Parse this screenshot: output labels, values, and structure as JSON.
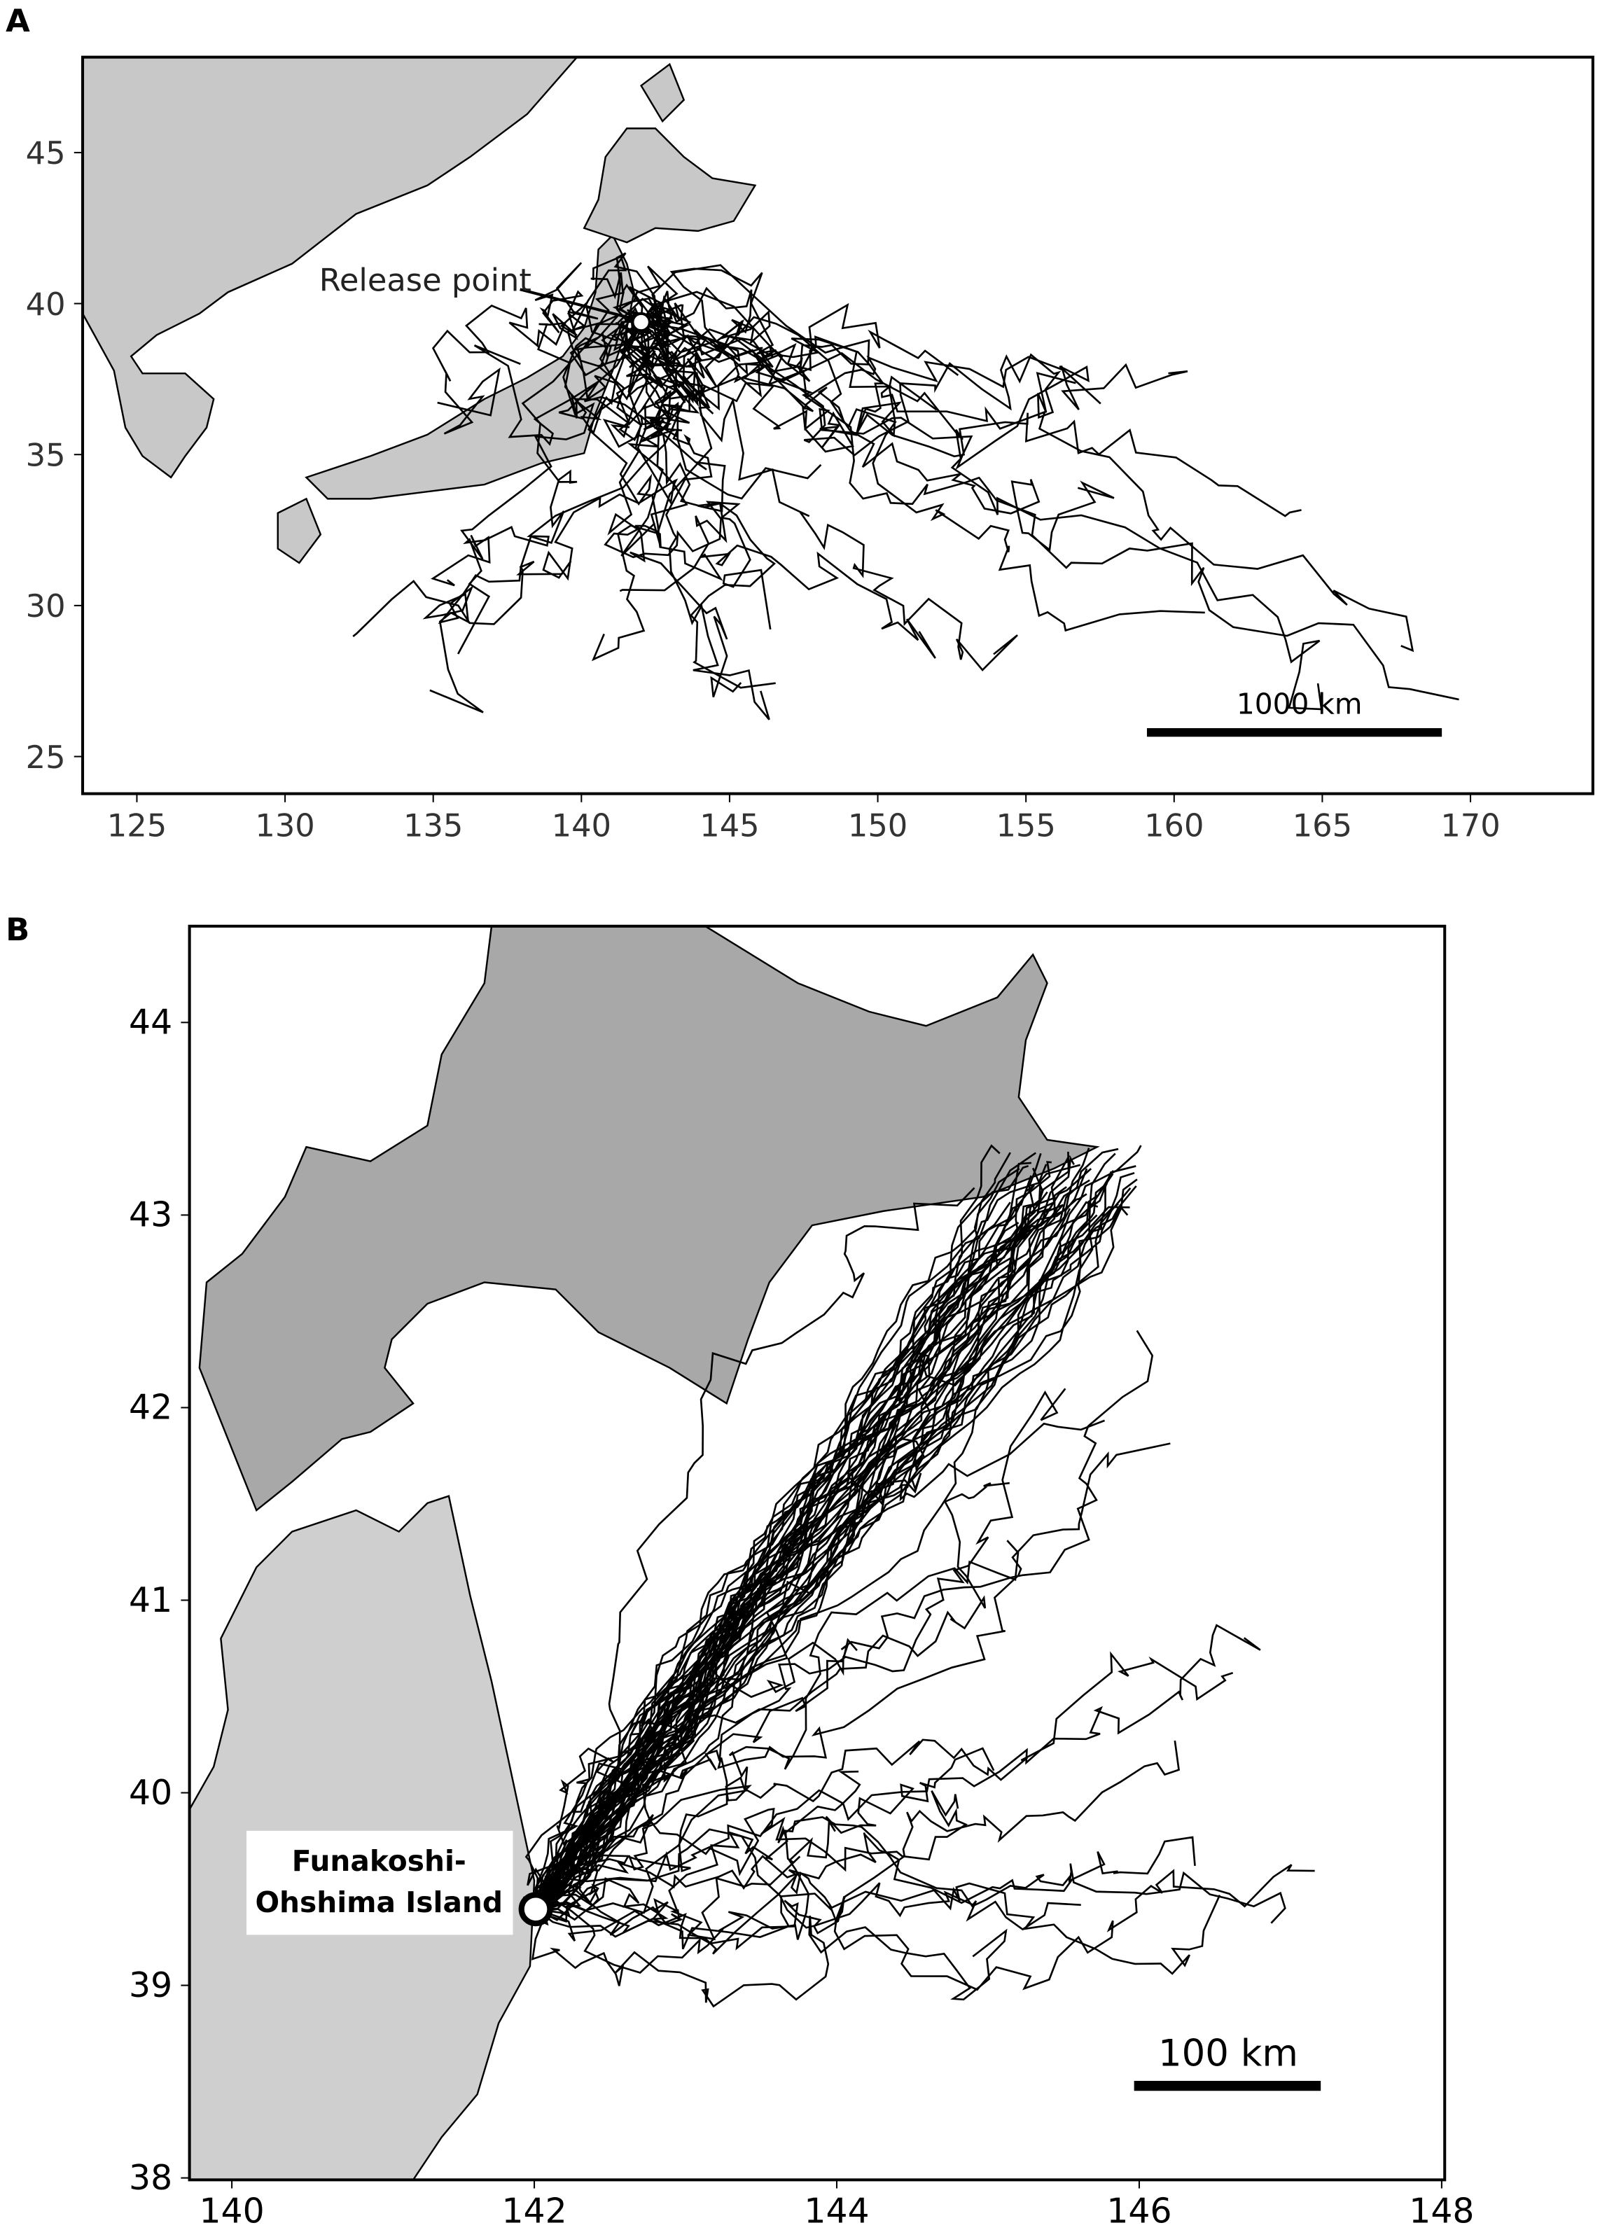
{
  "panels": [
    {
      "label": "A",
      "xlim": [
        123.17,
        174.13
      ],
      "ylim": [
        23.77,
        48.16
      ],
      "xticks": [
        125,
        130,
        135,
        140,
        145,
        150,
        155,
        160,
        165,
        170
      ],
      "yticks": [
        25,
        30,
        35,
        40,
        45
      ],
      "annotation": "Release point",
      "scale_bar": "1000 km"
    },
    {
      "label": "B",
      "xlim": [
        139.72,
        148.02
      ],
      "ylim": [
        37.99,
        44.5
      ],
      "xticks": [
        140,
        142,
        144,
        146,
        148
      ],
      "yticks": [
        38,
        39,
        40,
        41,
        42,
        43,
        44
      ],
      "annotation_lines": [
        "Funakoshi-",
        "Ohshima Island"
      ],
      "scale_bar": "100 km"
    }
  ]
}
